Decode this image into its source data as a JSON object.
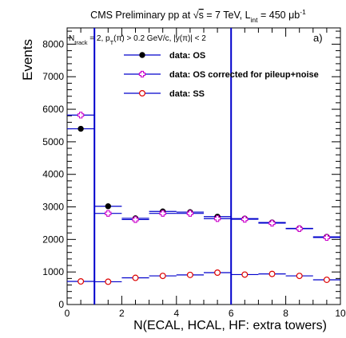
{
  "chart_data": {
    "type": "scatter",
    "title_parts": {
      "pre": "CMS Preliminary pp at ",
      "sqrt_symbol": "√",
      "sqrt_arg": "s",
      "energy": " = 7 TeV, L",
      "lumi_sub": "int",
      "lumi_val": " = 450 μb",
      "lumi_sup": "-1"
    },
    "selection_parts": {
      "n": "N",
      "n_sub": "track",
      "n_rest": " = 2, p",
      "pt_sub": "T",
      "pt_rest": "(π) > 0.2 GeV/c, |y(π)| < 2"
    },
    "panel_label": "a)",
    "xlabel": "N(ECAL, HCAL, HF: extra towers)",
    "ylabel": "Events",
    "xlim": [
      0,
      10
    ],
    "ylim": [
      0,
      8500
    ],
    "x_ticks": [
      0,
      2,
      4,
      6,
      8,
      10
    ],
    "x_tick_labels": [
      "0",
      "2",
      "4",
      "6",
      "8",
      "10"
    ],
    "y_ticks": [
      0,
      1000,
      2000,
      3000,
      4000,
      5000,
      6000,
      7000,
      8000
    ],
    "y_tick_labels": [
      "0",
      "1000",
      "2000",
      "3000",
      "4000",
      "5000",
      "6000",
      "7000",
      "8000"
    ],
    "cut_lines_x": [
      1,
      6
    ],
    "bin_edges": [
      0,
      1,
      2,
      3,
      4,
      5,
      6,
      7,
      8,
      9,
      10
    ],
    "x": [
      0.5,
      1.5,
      2.5,
      3.5,
      4.5,
      5.5,
      6.5,
      7.5,
      8.5,
      9.5
    ],
    "series": [
      {
        "name": "data: OS",
        "color": "#000000",
        "marker": "filled-circle",
        "values": [
          5400,
          3020,
          2650,
          2860,
          2840,
          2700,
          2640,
          2520,
          2340,
          2080
        ]
      },
      {
        "name": "data: OS corrected for pileup+noise",
        "color": "#cc00cc",
        "marker": "open-cross",
        "values": [
          5820,
          2800,
          2610,
          2800,
          2800,
          2640,
          2620,
          2500,
          2330,
          2060
        ]
      },
      {
        "name": "data: SS",
        "color": "#dd0000",
        "marker": "open-circle",
        "values": [
          710,
          700,
          820,
          880,
          910,
          980,
          920,
          940,
          880,
          760
        ]
      }
    ],
    "legend_placement": "top-center",
    "grid": false,
    "colors": {
      "cut_line": "#0000cc",
      "error_bar": "#0000cc",
      "frame": "#000000"
    }
  }
}
